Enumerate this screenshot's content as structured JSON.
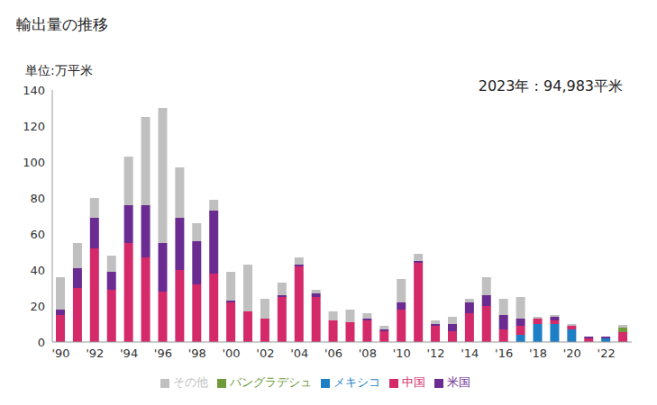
{
  "chart_data": {
    "type": "bar",
    "title": "輸出量の推移",
    "y_label": "単位:万平米",
    "annotation": "2023年 : 94,983平米",
    "categories": [
      "'90",
      null,
      "'92",
      null,
      "'94",
      null,
      "'96",
      null,
      "'98",
      null,
      "'00",
      null,
      "'02",
      null,
      "'04",
      null,
      "'06",
      null,
      "'08",
      null,
      "'10",
      null,
      "'12",
      null,
      "'14",
      null,
      "'16",
      null,
      "'18",
      null,
      "'20",
      null,
      "'22",
      null
    ],
    "series": [
      {
        "name": "メキシコ",
        "color": "#1f7fc4",
        "values": [
          0,
          0,
          0,
          0,
          0,
          0,
          0,
          0,
          0,
          0,
          0,
          0,
          0,
          0,
          0,
          0,
          0,
          0,
          0,
          0,
          0,
          0,
          0,
          0,
          0,
          0,
          0,
          4,
          10,
          10,
          7,
          0,
          2,
          0
        ]
      },
      {
        "name": "中国",
        "color": "#d42a6a",
        "values": [
          15,
          30,
          52,
          29,
          55,
          47,
          28,
          40,
          32,
          38,
          22,
          17,
          13,
          25,
          42,
          25,
          12,
          11,
          12,
          6,
          18,
          44,
          9,
          6,
          16,
          20,
          7,
          5,
          3,
          2,
          2,
          2,
          0,
          5.5
        ]
      },
      {
        "name": "バングラデシュ",
        "color": "#6e9a3a",
        "values": [
          0,
          0,
          0,
          0,
          0,
          0,
          0,
          0,
          0,
          0,
          0,
          0,
          0,
          0,
          0,
          0,
          0,
          0,
          0,
          0,
          0,
          0,
          0,
          0,
          0,
          0,
          0,
          0,
          0,
          0,
          0,
          0,
          0,
          2.5
        ]
      },
      {
        "name": "米国",
        "color": "#6a2c91",
        "values": [
          3,
          11,
          17,
          10,
          21,
          29,
          27,
          29,
          24,
          35,
          1,
          0,
          0,
          1,
          1,
          2,
          0,
          0,
          1,
          1,
          4,
          1,
          1,
          4,
          6,
          6,
          8,
          4,
          0,
          2,
          0,
          1,
          1,
          0
        ]
      },
      {
        "name": "その他",
        "color": "#c0c0c0",
        "values": [
          18,
          14,
          11,
          9,
          27,
          49,
          75,
          28,
          10,
          6,
          16,
          26,
          11,
          7,
          4,
          2,
          5,
          7,
          3,
          2,
          13,
          4,
          2,
          4,
          2,
          10,
          9,
          12,
          1,
          1,
          1,
          0,
          0,
          1.5
        ]
      }
    ],
    "ylim": [
      0,
      140
    ],
    "yticks": [
      0,
      20,
      40,
      60,
      80,
      100,
      120,
      140
    ],
    "grid": false,
    "stacked": true,
    "legend": "bottom"
  }
}
